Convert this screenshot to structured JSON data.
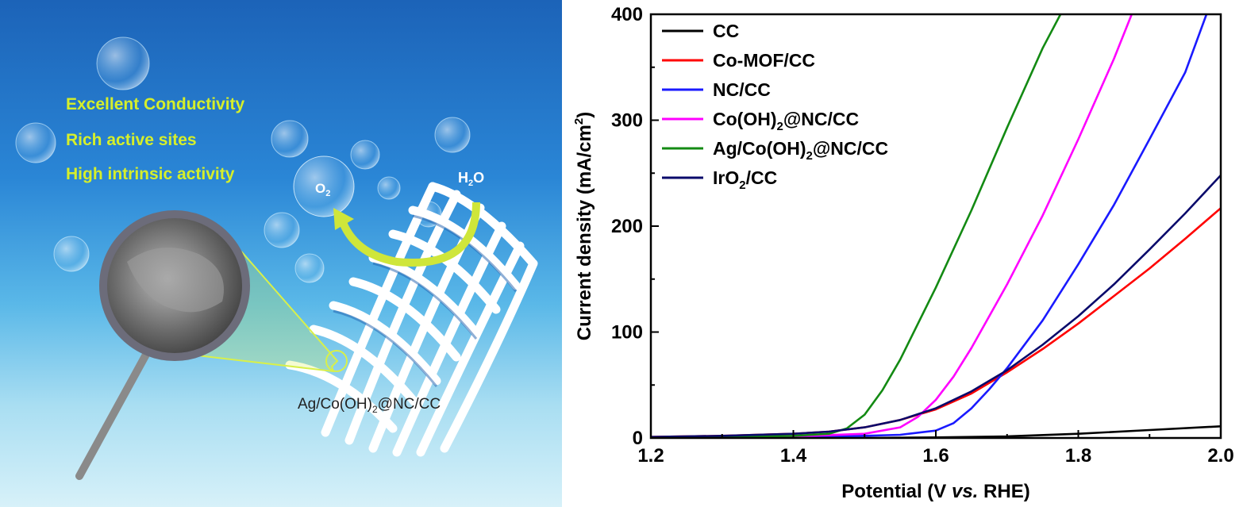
{
  "illustration": {
    "features": [
      "Excellent Conductivity",
      "Rich active sites",
      "High intrinsic activity"
    ],
    "product_label": [
      "Ag/Co(OH)",
      "2",
      "@NC/CC"
    ],
    "o2_label": [
      "O",
      "2"
    ],
    "h2o_label": [
      "H",
      "2",
      "O"
    ],
    "colors": {
      "feature_text": "#d6ef2a",
      "water_top": "#1a6fc4",
      "water_bottom": "#cfeffa",
      "arrow": "#cfe63a"
    }
  },
  "chart_data": {
    "type": "line",
    "xlabel": [
      "Potential (V ",
      "vs.",
      " RHE)"
    ],
    "ylabel": [
      "Current density (mA/cm",
      "2",
      ")"
    ],
    "xlim": [
      1.2,
      2.0
    ],
    "ylim": [
      0,
      400
    ],
    "xticks": [
      "1.2",
      "1.4",
      "1.6",
      "1.8",
      "2.0"
    ],
    "yticks": [
      "0",
      "100",
      "200",
      "300",
      "400"
    ],
    "legend_position": "top-left",
    "series": [
      {
        "name": [
          "CC"
        ],
        "color": "#000000",
        "x": [
          1.2,
          1.3,
          1.4,
          1.5,
          1.6,
          1.7,
          1.8,
          1.9,
          2.0
        ],
        "y": [
          0,
          0,
          0,
          0,
          0.5,
          1.5,
          4,
          7.5,
          11
        ]
      },
      {
        "name": [
          "Co-MOF/CC"
        ],
        "color": "#ff0000",
        "x": [
          1.2,
          1.3,
          1.4,
          1.45,
          1.5,
          1.55,
          1.6,
          1.65,
          1.7,
          1.75,
          1.8,
          1.85,
          1.9,
          1.95,
          2.0
        ],
        "y": [
          1,
          2,
          4,
          6,
          10,
          17,
          27,
          42,
          62,
          84,
          108,
          134,
          160,
          188,
          217
        ]
      },
      {
        "name": [
          "NC/CC"
        ],
        "color": "#1a1aff",
        "x": [
          1.2,
          1.3,
          1.4,
          1.5,
          1.55,
          1.6,
          1.625,
          1.65,
          1.675,
          1.7,
          1.75,
          1.8,
          1.85,
          1.9,
          1.95,
          1.98
        ],
        "y": [
          0,
          0.5,
          1,
          2,
          3,
          7,
          14,
          28,
          46,
          66,
          111,
          164,
          220,
          282,
          345,
          400
        ]
      },
      {
        "name": [
          "Co(OH)",
          "2",
          "@NC/CC"
        ],
        "color": "#ff00ff",
        "x": [
          1.2,
          1.3,
          1.4,
          1.5,
          1.55,
          1.575,
          1.6,
          1.625,
          1.65,
          1.7,
          1.75,
          1.8,
          1.85,
          1.875
        ],
        "y": [
          0,
          0.5,
          1.5,
          4,
          10,
          20,
          36,
          58,
          85,
          145,
          210,
          282,
          358,
          400
        ]
      },
      {
        "name": [
          "Ag/Co(OH)",
          "2",
          "@NC/CC"
        ],
        "color": "#138a13",
        "x": [
          1.2,
          1.3,
          1.4,
          1.45,
          1.475,
          1.5,
          1.525,
          1.55,
          1.6,
          1.65,
          1.7,
          1.75,
          1.775
        ],
        "y": [
          0,
          0.5,
          2,
          4,
          9,
          22,
          45,
          74,
          142,
          215,
          293,
          368,
          400
        ]
      },
      {
        "name": [
          "IrO",
          "2",
          "/CC"
        ],
        "color": "#0a0a6b",
        "x": [
          1.2,
          1.3,
          1.4,
          1.45,
          1.5,
          1.55,
          1.6,
          1.65,
          1.7,
          1.75,
          1.8,
          1.85,
          1.9,
          1.95,
          2.0
        ],
        "y": [
          1,
          2,
          4,
          6,
          10,
          17,
          28,
          44,
          64,
          88,
          115,
          145,
          178,
          212,
          248
        ]
      }
    ]
  }
}
